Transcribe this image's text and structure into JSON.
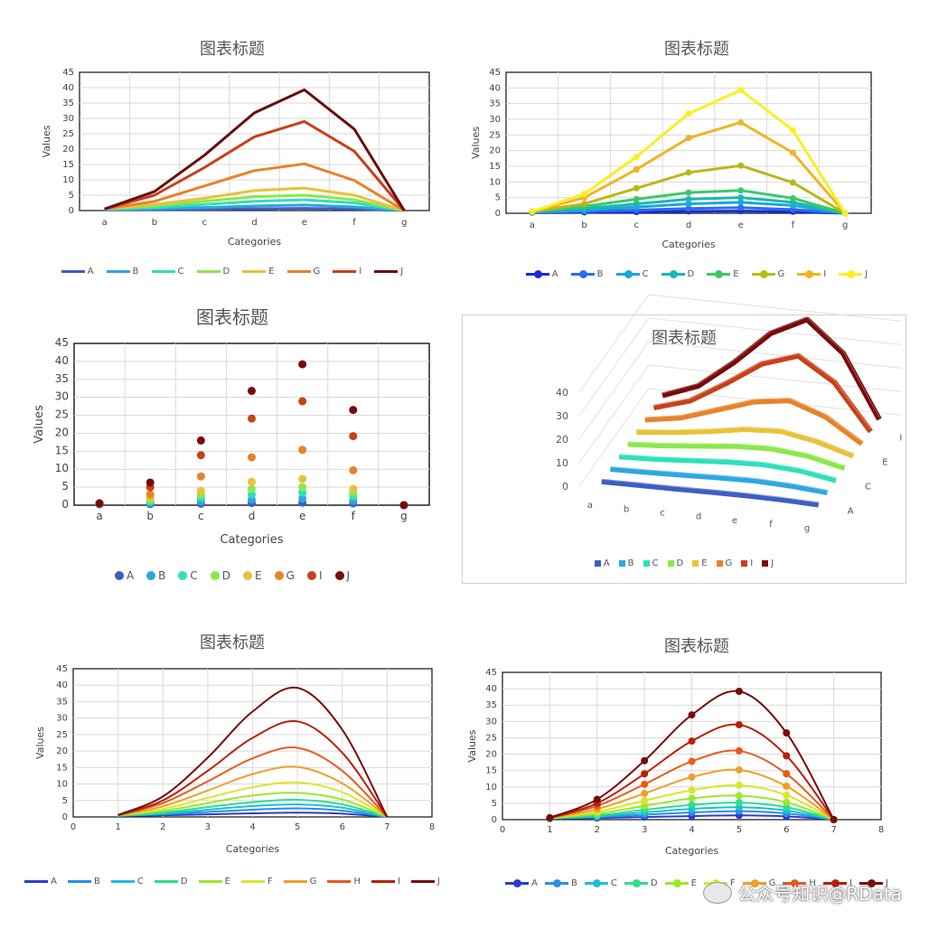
{
  "colors": {
    "set1": [
      "#3d5fc4",
      "#2fa6e0",
      "#2fe0b8",
      "#8be84a",
      "#e8c23a",
      "#e8822a",
      "#c8401a",
      "#6a0d0d"
    ],
    "set2": [
      "#1a2adb",
      "#2a6ee8",
      "#1aa6e0",
      "#1ab8b0",
      "#3cc86a",
      "#b8b81a",
      "#f0b428",
      "#f8f020"
    ],
    "set3": [
      "#3d5fc4",
      "#2fa6e0",
      "#2fe0b8",
      "#8be84a",
      "#e8c23a",
      "#e8822a",
      "#c8401a",
      "#7a0a0a"
    ],
    "set4": [
      "#3d5fc4",
      "#2fa6e0",
      "#2fe0b8",
      "#8be84a",
      "#e8c23a",
      "#e8822a",
      "#c8401a",
      "#7a0a0a"
    ],
    "set5": [
      "#2a3ec8",
      "#2a8ee8",
      "#1ac0d8",
      "#2ae08a",
      "#9ae82a",
      "#d8e82a",
      "#f0a028",
      "#e85a1a",
      "#b8200a",
      "#7a0a0a"
    ],
    "set6": [
      "#2a3ec8",
      "#2a8ee8",
      "#1ac0d8",
      "#2ae08a",
      "#9ae82a",
      "#d8e82a",
      "#f0a028",
      "#e85a1a",
      "#b8200a",
      "#7a0a0a"
    ]
  },
  "chart_data": [
    {
      "type": "line",
      "title": "图表标题",
      "xlabel": "Categories",
      "ylabel": "Values",
      "ylim": [
        0,
        45
      ],
      "yticks": [
        "0",
        "5",
        "10",
        "15",
        "20",
        "25",
        "30",
        "35",
        "40",
        "45"
      ],
      "categories": [
        "a",
        "b",
        "c",
        "d",
        "e",
        "f",
        "g"
      ],
      "series": [
        {
          "name": "A",
          "values": [
            0.2,
            0.3,
            0.4,
            0.6,
            0.7,
            0.5,
            0
          ]
        },
        {
          "name": "B",
          "values": [
            0.3,
            0.6,
            1,
            1.5,
            1.8,
            1.2,
            0
          ]
        },
        {
          "name": "C",
          "values": [
            0.4,
            1,
            2,
            3,
            3.5,
            2.5,
            0
          ]
        },
        {
          "name": "D",
          "values": [
            0.5,
            1.5,
            3,
            4.5,
            5,
            3.5,
            0
          ]
        },
        {
          "name": "E",
          "values": [
            0.5,
            2,
            4,
            6.5,
            7.3,
            5,
            0
          ]
        },
        {
          "name": "G",
          "values": [
            0.5,
            3,
            8,
            13,
            15.2,
            9.8,
            0
          ]
        },
        {
          "name": "I",
          "values": [
            0.5,
            5,
            14,
            24,
            29,
            19.3,
            0
          ]
        },
        {
          "name": "J",
          "values": [
            0.5,
            6.2,
            18,
            31.8,
            39.3,
            26.5,
            0
          ]
        }
      ],
      "legend_placement": "bottom"
    },
    {
      "type": "line",
      "title": "图表标题",
      "xlabel": "Categories",
      "ylabel": "Values",
      "ylim": [
        0,
        45
      ],
      "yticks": [
        "0",
        "5",
        "10",
        "15",
        "20",
        "25",
        "30",
        "35",
        "40",
        "45"
      ],
      "categories": [
        "a",
        "b",
        "c",
        "d",
        "e",
        "f",
        "g"
      ],
      "series": [
        {
          "name": "A",
          "values": [
            0.2,
            0.3,
            0.4,
            0.6,
            0.7,
            0.5,
            0
          ]
        },
        {
          "name": "B",
          "values": [
            0.3,
            0.6,
            1,
            1.5,
            1.8,
            1.2,
            0
          ]
        },
        {
          "name": "C",
          "values": [
            0.4,
            1,
            2,
            3,
            3.5,
            2.5,
            0
          ]
        },
        {
          "name": "D",
          "values": [
            0.5,
            1.5,
            3,
            4.5,
            5,
            3.5,
            0
          ]
        },
        {
          "name": "E",
          "values": [
            0.5,
            2.2,
            4.5,
            6.6,
            7.3,
            4.8,
            0
          ]
        },
        {
          "name": "G",
          "values": [
            0.5,
            3,
            8,
            13,
            15.2,
            9.8,
            0
          ]
        },
        {
          "name": "I",
          "values": [
            0.5,
            5,
            14,
            24,
            29,
            19.3,
            0
          ]
        },
        {
          "name": "J",
          "values": [
            0.5,
            6.2,
            18,
            31.8,
            39.3,
            26.5,
            0
          ]
        }
      ],
      "legend_placement": "bottom"
    },
    {
      "type": "scatter",
      "title": "图表标题",
      "xlabel": "Categories",
      "ylabel": "Values",
      "ylim": [
        0,
        45
      ],
      "yticks": [
        "0",
        "5",
        "10",
        "15",
        "20",
        "25",
        "30",
        "35",
        "40",
        "45"
      ],
      "categories": [
        "a",
        "b",
        "c",
        "d",
        "e",
        "f",
        "g"
      ],
      "series": [
        {
          "name": "A",
          "values": [
            0.2,
            0.3,
            0.4,
            0.6,
            0.7,
            0.5,
            0
          ]
        },
        {
          "name": "B",
          "values": [
            0.3,
            0.6,
            1,
            1.5,
            1.8,
            1.2,
            0
          ]
        },
        {
          "name": "C",
          "values": [
            0.4,
            1,
            2,
            3,
            3.5,
            2.5,
            0
          ]
        },
        {
          "name": "D",
          "values": [
            0.5,
            1.5,
            3,
            4.5,
            5,
            3.5,
            0
          ]
        },
        {
          "name": "E",
          "values": [
            0.5,
            2,
            4,
            6.5,
            7.3,
            4.5,
            0
          ]
        },
        {
          "name": "G",
          "values": [
            0.5,
            3,
            8,
            13.3,
            15.4,
            9.7,
            0
          ]
        },
        {
          "name": "I",
          "values": [
            0.5,
            5,
            13.9,
            24.1,
            28.9,
            19.2,
            0
          ]
        },
        {
          "name": "J",
          "values": [
            0.5,
            6.3,
            18,
            31.8,
            39.2,
            26.5,
            0
          ]
        }
      ],
      "legend_placement": "bottom"
    },
    {
      "type": "line-3d",
      "title": "图表标题",
      "yticks": [
        "0",
        "10",
        "20",
        "30",
        "40"
      ],
      "ylim": [
        0,
        45
      ],
      "categories": [
        "a",
        "b",
        "c",
        "d",
        "e",
        "f",
        "g"
      ],
      "depth_labels": [
        "A",
        "C",
        "E",
        "I"
      ],
      "series": [
        {
          "name": "A",
          "values": [
            0.2,
            0.3,
            0.4,
            0.6,
            0.7,
            0.5,
            0
          ]
        },
        {
          "name": "B",
          "values": [
            0.3,
            0.6,
            1,
            1.5,
            1.8,
            1.2,
            0
          ]
        },
        {
          "name": "C",
          "values": [
            0.4,
            1,
            2,
            3,
            3.5,
            2.5,
            0
          ]
        },
        {
          "name": "D",
          "values": [
            0.5,
            1.5,
            3,
            4.5,
            5,
            3.5,
            0
          ]
        },
        {
          "name": "E",
          "values": [
            0.5,
            2,
            4,
            6.5,
            7.3,
            4.5,
            0
          ]
        },
        {
          "name": "G",
          "values": [
            0.5,
            3,
            8,
            13,
            15.2,
            9.8,
            0
          ]
        },
        {
          "name": "I",
          "values": [
            0.5,
            5,
            14,
            24,
            29,
            19.3,
            0
          ]
        },
        {
          "name": "J",
          "values": [
            0.5,
            6.2,
            18,
            31.8,
            39.3,
            26.5,
            0
          ]
        }
      ],
      "legend_placement": "bottom"
    },
    {
      "type": "line",
      "title": "图表标题",
      "xlabel": "Categories",
      "ylabel": "Values",
      "ylim": [
        0,
        45
      ],
      "xlim": [
        0,
        8
      ],
      "yticks": [
        "0",
        "5",
        "10",
        "15",
        "20",
        "25",
        "30",
        "35",
        "40",
        "45"
      ],
      "xticks": [
        "0",
        "1",
        "2",
        "3",
        "4",
        "5",
        "6",
        "7",
        "8"
      ],
      "x": [
        1,
        2,
        3,
        4,
        5,
        6,
        7
      ],
      "series": [
        {
          "name": "A",
          "values": [
            0.3,
            0.5,
            0.8,
            1.1,
            1.3,
            1.0,
            0
          ]
        },
        {
          "name": "B",
          "values": [
            0.3,
            0.8,
            1.5,
            2.2,
            2.6,
            1.9,
            0
          ]
        },
        {
          "name": "C",
          "values": [
            0.4,
            1.0,
            2.2,
            3.3,
            3.8,
            2.8,
            0
          ]
        },
        {
          "name": "D",
          "values": [
            0.4,
            1.3,
            3.0,
            4.5,
            5.2,
            3.8,
            0
          ]
        },
        {
          "name": "E",
          "values": [
            0.5,
            1.8,
            4.2,
            6.5,
            7.3,
            5.3,
            0
          ]
        },
        {
          "name": "F",
          "values": [
            0.5,
            2.4,
            5.8,
            9.0,
            10.5,
            7.5,
            0
          ]
        },
        {
          "name": "G",
          "values": [
            0.5,
            3.2,
            8.0,
            13.0,
            15.2,
            10.2,
            0
          ]
        },
        {
          "name": "H",
          "values": [
            0.5,
            4.2,
            10.8,
            17.8,
            21.0,
            14.0,
            0
          ]
        },
        {
          "name": "I",
          "values": [
            0.5,
            5.0,
            14.0,
            24.0,
            29.0,
            19.5,
            0
          ]
        },
        {
          "name": "J",
          "values": [
            0.6,
            6.2,
            18.0,
            32.0,
            39.2,
            26.5,
            0
          ]
        }
      ],
      "legend_placement": "bottom"
    },
    {
      "type": "line",
      "title": "图表标题",
      "xlabel": "Categories",
      "ylabel": "Values",
      "ylim": [
        0,
        45
      ],
      "xlim": [
        0,
        8
      ],
      "yticks": [
        "0",
        "5",
        "10",
        "15",
        "20",
        "25",
        "30",
        "35",
        "40",
        "45"
      ],
      "xticks": [
        "0",
        "1",
        "2",
        "3",
        "4",
        "5",
        "6",
        "7",
        "8"
      ],
      "x": [
        1,
        2,
        3,
        4,
        5,
        6,
        7
      ],
      "series": [
        {
          "name": "A",
          "values": [
            0.3,
            0.5,
            0.8,
            1.1,
            1.3,
            1.0,
            0
          ]
        },
        {
          "name": "B",
          "values": [
            0.3,
            0.8,
            1.5,
            2.2,
            2.6,
            1.9,
            0
          ]
        },
        {
          "name": "C",
          "values": [
            0.4,
            1.0,
            2.2,
            3.3,
            3.8,
            2.8,
            0
          ]
        },
        {
          "name": "D",
          "values": [
            0.4,
            1.3,
            3.0,
            4.5,
            5.2,
            3.8,
            0
          ]
        },
        {
          "name": "E",
          "values": [
            0.5,
            1.8,
            4.2,
            6.5,
            7.3,
            5.3,
            0
          ]
        },
        {
          "name": "F",
          "values": [
            0.5,
            2.4,
            5.8,
            9.0,
            10.5,
            7.5,
            0
          ]
        },
        {
          "name": "G",
          "values": [
            0.5,
            3.2,
            8.0,
            13.0,
            15.2,
            10.2,
            0
          ]
        },
        {
          "name": "H",
          "values": [
            0.5,
            4.2,
            10.8,
            17.8,
            21.0,
            14.0,
            0
          ]
        },
        {
          "name": "I",
          "values": [
            0.5,
            5.0,
            14.0,
            24.0,
            29.0,
            19.5,
            0
          ]
        },
        {
          "name": "J",
          "values": [
            0.6,
            6.2,
            18.0,
            32.0,
            39.2,
            26.5,
            0
          ]
        }
      ],
      "legend_placement": "bottom"
    }
  ],
  "watermark": "公众号知识@RDatа"
}
